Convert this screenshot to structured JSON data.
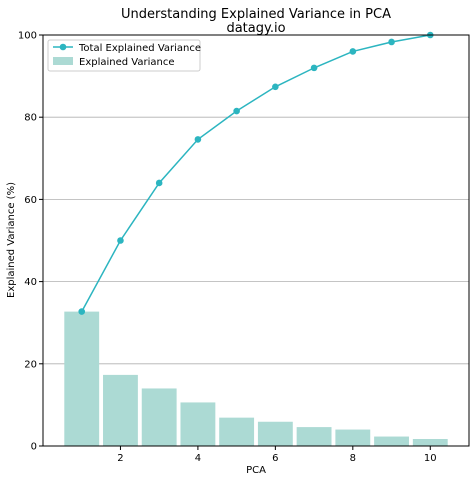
{
  "chart_data": {
    "type": "bar",
    "title": "Understanding Explained Variance in PCA",
    "subtitle": "datagy.io",
    "xlabel": "PCA",
    "ylabel": "Explained Variance (%)",
    "x": [
      1,
      2,
      3,
      4,
      5,
      6,
      7,
      8,
      9,
      10
    ],
    "xticks": [
      2,
      4,
      6,
      8,
      10
    ],
    "yticks": [
      0,
      20,
      40,
      60,
      80,
      100
    ],
    "xlim": [
      0,
      11
    ],
    "ylim": [
      0,
      100
    ],
    "grid": "horizontal",
    "legend_placement": "top-left",
    "series": [
      {
        "name": "Total Explained Variance",
        "type": "line",
        "color": "#2cb5c0",
        "values": [
          32.7,
          50.0,
          64.0,
          74.6,
          81.5,
          87.4,
          92.0,
          96.0,
          98.3,
          100.0
        ]
      },
      {
        "name": "Explained Variance",
        "type": "bar",
        "color": "#acdad4",
        "values": [
          32.7,
          17.3,
          14.0,
          10.6,
          6.9,
          5.9,
          4.6,
          4.0,
          2.3,
          1.7
        ]
      }
    ]
  }
}
